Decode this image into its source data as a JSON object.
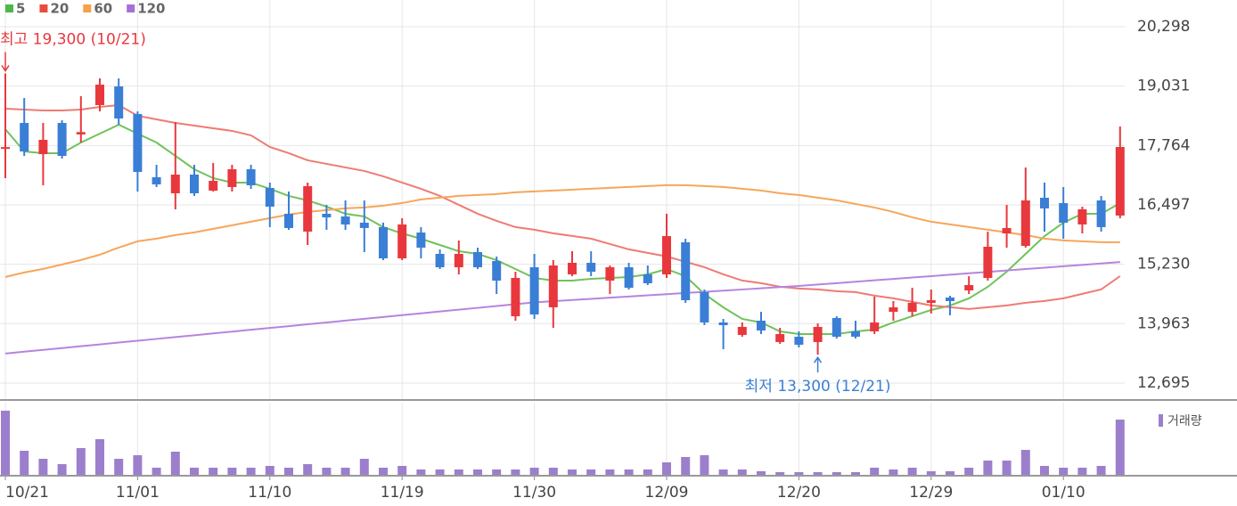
{
  "chart_data": {
    "type": "candlestick",
    "legend": [
      {
        "name": "5",
        "color": "#4cb848"
      },
      {
        "name": "20",
        "color": "#e84c3d"
      },
      {
        "name": "60",
        "color": "#f5a04a"
      },
      {
        "name": "120",
        "color": "#a66fd6"
      }
    ],
    "annotations": {
      "high": {
        "text": "최고 19,300 (10/21)",
        "color": "#e8383d"
      },
      "low": {
        "text": "최저 13,300 (12/21)",
        "color": "#3a7fd5"
      }
    },
    "up_color": "#e8383d",
    "down_color": "#3a7fd5",
    "categories": [
      "10/21",
      null,
      null,
      null,
      null,
      null,
      null,
      "11/01",
      null,
      null,
      null,
      null,
      null,
      null,
      "11/10",
      null,
      null,
      null,
      null,
      null,
      null,
      "11/19",
      null,
      null,
      null,
      null,
      null,
      null,
      "11/30",
      null,
      null,
      null,
      null,
      null,
      null,
      "12/09",
      null,
      null,
      null,
      null,
      null,
      null,
      "12/20",
      null,
      null,
      null,
      null,
      null,
      null,
      "12/29",
      null,
      null,
      null,
      null,
      null,
      null,
      "01/10",
      null,
      null,
      null
    ],
    "open": [
      17700,
      18245,
      17580,
      18245,
      18000,
      18626,
      19024,
      18436,
      17086,
      16744,
      17143,
      16801,
      16877,
      17257,
      16858,
      16307,
      15927,
      16307,
      16250,
      16117,
      16022,
      15356,
      15907,
      15451,
      15166,
      15489,
      15299,
      14121,
      15166,
      14311,
      15014,
      15261,
      14881,
      15166,
      15014,
      15014,
      15698,
      14634,
      13988,
      13722,
      14026,
      13570,
      13684,
      13570,
      14083,
      13798,
      13798,
      14216,
      14216,
      14406,
      14520,
      14672,
      14938,
      15888,
      15622,
      16649,
      16535,
      16079,
      16592,
      16269
    ],
    "high": [
      19300,
      18777,
      18245,
      18302,
      18816,
      19196,
      19196,
      18492,
      17352,
      18264,
      17352,
      17390,
      17352,
      17352,
      16972,
      16782,
      16972,
      16497,
      16592,
      16592,
      16117,
      16212,
      16022,
      15546,
      15736,
      15584,
      15394,
      15071,
      15451,
      15318,
      15508,
      15508,
      15204,
      15261,
      15204,
      16307,
      15774,
      14691,
      14064,
      13988,
      14216,
      13874,
      13798,
      13969,
      14121,
      14026,
      14539,
      14444,
      14729,
      14691,
      14558,
      14976,
      15926,
      16497,
      17295,
      16972,
      16877,
      16459,
      16687,
      18169
    ],
    "low": [
      17067,
      17542,
      16915,
      17485,
      17827,
      18492,
      18207,
      16782,
      16877,
      16402,
      16687,
      16782,
      16782,
      16839,
      16021,
      15964,
      15641,
      15964,
      15964,
      15489,
      15318,
      15318,
      15356,
      15128,
      15014,
      15128,
      14596,
      14026,
      14064,
      13874,
      14976,
      14976,
      14596,
      14691,
      14786,
      14938,
      14406,
      13931,
      13417,
      13684,
      13741,
      13532,
      13456,
      13300,
      13646,
      13646,
      13741,
      14026,
      14121,
      14178,
      14140,
      14596,
      14881,
      15584,
      15584,
      15926,
      15774,
      15888,
      15926,
      16212
    ],
    "close": [
      17730,
      17637,
      17884,
      17542,
      18050,
      19062,
      18340,
      17200,
      16934,
      17143,
      16744,
      17010,
      17257,
      16915,
      16459,
      16003,
      16896,
      16231,
      16079,
      16003,
      15356,
      16079,
      15584,
      15166,
      15451,
      15166,
      14881,
      14938,
      14159,
      15204,
      15261,
      15071,
      15166,
      14729,
      14824,
      15831,
      14463,
      13988,
      13931,
      13893,
      13817,
      13741,
      13513,
      13893,
      13684,
      13684,
      13988,
      14311,
      14406,
      14463,
      14444,
      14786,
      15603,
      16003,
      16592,
      16421,
      16117,
      16402,
      16022,
      17732
    ],
    "moving_averages": [
      {
        "name": "5",
        "color": "#6fc35a",
        "values": [
          18112,
          17637,
          17599,
          17599,
          17827,
          18017,
          18207,
          18017,
          17827,
          17542,
          17257,
          17067,
          16972,
          16972,
          16839,
          16687,
          16592,
          16459,
          16307,
          16250,
          16022,
          15888,
          15774,
          15641,
          15508,
          15451,
          15318,
          15128,
          14938,
          14881,
          14881,
          14919,
          14938,
          14957,
          15014,
          15128,
          14976,
          14596,
          14311,
          14064,
          13988,
          13798,
          13741,
          13741,
          13741,
          13798,
          13836,
          13988,
          14121,
          14254,
          14349,
          14501,
          14748,
          15071,
          15451,
          15831,
          16117,
          16307,
          16307,
          16535
        ]
      },
      {
        "name": "20",
        "color": "#ee7b74",
        "values": [
          18550,
          18531,
          18512,
          18512,
          18531,
          18588,
          18626,
          18398,
          18322,
          18246,
          18189,
          18132,
          18075,
          17980,
          17733,
          17600,
          17448,
          17372,
          17296,
          17220,
          17106,
          16973,
          16840,
          16688,
          16498,
          16308,
          16156,
          16023,
          15966,
          15890,
          15833,
          15776,
          15662,
          15548,
          15472,
          15396,
          15282,
          15168,
          15016,
          14883,
          14826,
          14750,
          14712,
          14693,
          14655,
          14636,
          14560,
          14503,
          14427,
          14351,
          14313,
          14275,
          14313,
          14351,
          14408,
          14446,
          14503,
          14598,
          14693,
          14978
        ]
      },
      {
        "name": "60",
        "color": "#f7a65a",
        "values": [
          14959,
          15054,
          15130,
          15225,
          15320,
          15434,
          15586,
          15719,
          15776,
          15852,
          15909,
          15985,
          16061,
          16137,
          16213,
          16289,
          16346,
          16384,
          16422,
          16441,
          16479,
          16536,
          16612,
          16650,
          16688,
          16707,
          16726,
          16764,
          16783,
          16802,
          16821,
          16840,
          16859,
          16878,
          16897,
          16916,
          16916,
          16897,
          16878,
          16840,
          16802,
          16745,
          16707,
          16650,
          16593,
          16517,
          16441,
          16346,
          16232,
          16137,
          16080,
          16023,
          15966,
          15909,
          15852,
          15776,
          15738,
          15719,
          15700,
          15700
        ]
      },
      {
        "name": "120",
        "color": "#b585de",
        "values": [
          13325,
          13364,
          13403,
          13442,
          13481,
          13520,
          13559,
          13598,
          13637,
          13676,
          13715,
          13754,
          13793,
          13832,
          13871,
          13910,
          13949,
          13988,
          14027,
          14066,
          14105,
          14144,
          14183,
          14222,
          14261,
          14300,
          14339,
          14378,
          14417,
          14442,
          14467,
          14492,
          14517,
          14542,
          14567,
          14592,
          14617,
          14642,
          14667,
          14692,
          14717,
          14742,
          14767,
          14797,
          14827,
          14857,
          14887,
          14917,
          14947,
          14977,
          15007,
          15037,
          15067,
          15097,
          15127,
          15157,
          15187,
          15217,
          15247,
          15277
        ]
      }
    ],
    "ylim": [
      12695,
      20298
    ],
    "yticks": [
      {
        "value": 12695,
        "label": "12,695"
      },
      {
        "value": 13963,
        "label": "13,963"
      },
      {
        "value": 15230,
        "label": "15,230"
      },
      {
        "value": 16497,
        "label": "16,497"
      },
      {
        "value": 17764,
        "label": "17,764"
      },
      {
        "value": 19031,
        "label": "19,031"
      },
      {
        "value": 20298,
        "label": "20,298"
      }
    ],
    "grid": true,
    "volume": {
      "name": "거래량",
      "color": "#9c7fcc",
      "ylim": [
        0,
        75
      ],
      "values": [
        72,
        27,
        18,
        12,
        30,
        40,
        18,
        22,
        8,
        26,
        8,
        8,
        8,
        8,
        10,
        8,
        12,
        8,
        8,
        18,
        8,
        10,
        6,
        6,
        6,
        6,
        6,
        6,
        8,
        8,
        6,
        6,
        6,
        6,
        6,
        14,
        20,
        22,
        6,
        6,
        4,
        3,
        3,
        3,
        3,
        3,
        8,
        6,
        8,
        4,
        4,
        8,
        16,
        16,
        28,
        10,
        8,
        8,
        10,
        62
      ]
    }
  }
}
